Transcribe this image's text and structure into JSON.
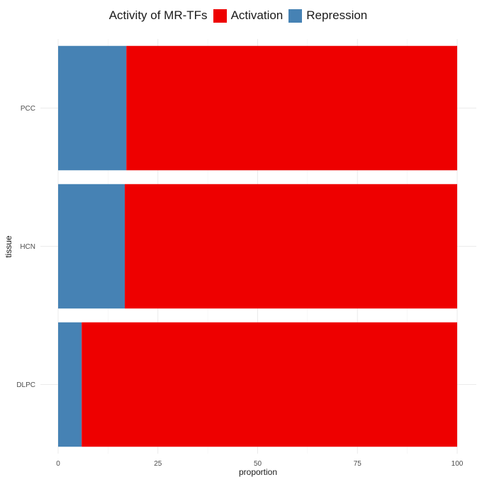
{
  "chart_data": {
    "type": "bar",
    "orientation": "horizontal",
    "stacked": true,
    "categories": [
      "PCC",
      "HCN",
      "DLPC"
    ],
    "series": [
      {
        "name": "Repression",
        "color": "#4682B4",
        "values": [
          17.1,
          16.7,
          5.9
        ]
      },
      {
        "name": "Activation",
        "color": "#EE0000",
        "values": [
          82.9,
          83.3,
          94.1
        ]
      }
    ],
    "legend_title": "Activity of MR-TFs",
    "legend_placement": "top",
    "xlabel": "proportion",
    "ylabel": "tissue",
    "xlim": [
      0,
      100
    ],
    "xticks": [
      "0",
      "25",
      "50",
      "75",
      "100"
    ],
    "grid": true
  }
}
